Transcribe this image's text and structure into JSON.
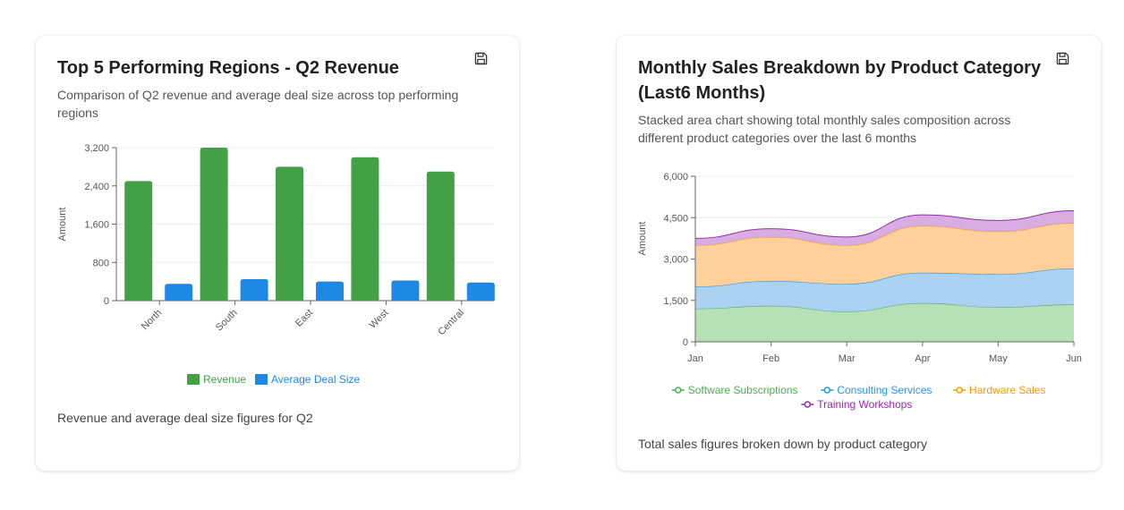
{
  "charts": [
    {
      "title": "Top 5 Performing Regions - Q2 Revenue",
      "description": "Comparison of Q2 revenue and average deal size across top performing regions",
      "footer": "Revenue and average deal size figures for Q2",
      "save_icon": "floppy-disk-icon"
    },
    {
      "title": "Monthly Sales Breakdown by Product Category (Last6 Months)",
      "description": "Stacked area chart showing total monthly sales composition across different product categories over the last 6 months",
      "footer": "Total sales figures broken down by product category",
      "save_icon": "floppy-disk-icon"
    }
  ],
  "chart_data": [
    {
      "type": "bar",
      "title": "Top 5 Performing Regions - Q2 Revenue",
      "categories": [
        "North",
        "South",
        "East",
        "West",
        "Central"
      ],
      "series": [
        {
          "name": "Revenue",
          "color": "#43a047",
          "values": [
            2500,
            3200,
            2800,
            3000,
            2700
          ]
        },
        {
          "name": "Average Deal Size",
          "color": "#1e88e5",
          "values": [
            350,
            450,
            400,
            420,
            380
          ]
        }
      ],
      "ylabel": "Amount",
      "xlabel": "",
      "ylim": [
        0,
        3200
      ],
      "yticks": [
        0,
        800,
        1600,
        2400,
        3200
      ],
      "ytick_labels": [
        "0",
        "800",
        "1,600",
        "2,400",
        "3,200"
      ],
      "legend": "bottom-center",
      "grid": true
    },
    {
      "type": "area",
      "stacked": true,
      "title": "Monthly Sales Breakdown by Product Category (Last6 Months)",
      "categories": [
        "Jan",
        "Feb",
        "Mar",
        "Apr",
        "May",
        "Jun"
      ],
      "series": [
        {
          "name": "Software Subscriptions",
          "color": "#4caf50",
          "fill": "#b2dfb2",
          "values": [
            1200,
            1300,
            1100,
            1400,
            1250,
            1350
          ]
        },
        {
          "name": "Consulting Services",
          "color": "#2196f3",
          "fill": "#a6cff2",
          "values": [
            800,
            900,
            1000,
            1100,
            1200,
            1300
          ]
        },
        {
          "name": "Hardware Sales",
          "color": "#ff9800",
          "fill": "#fdcd97",
          "values": [
            1500,
            1600,
            1400,
            1700,
            1550,
            1650
          ]
        },
        {
          "name": "Training Workshops",
          "color": "#9c27b0",
          "fill": "#d6a9e0",
          "values": [
            250,
            300,
            300,
            400,
            400,
            450
          ]
        }
      ],
      "ylabel": "Amount",
      "xlabel": "",
      "ylim": [
        0,
        6000
      ],
      "yticks": [
        0,
        1500,
        3000,
        4500,
        6000
      ],
      "ytick_labels": [
        "0",
        "1,500",
        "3,000",
        "4,500",
        "6,000"
      ],
      "legend": "bottom-center",
      "grid": true
    }
  ]
}
